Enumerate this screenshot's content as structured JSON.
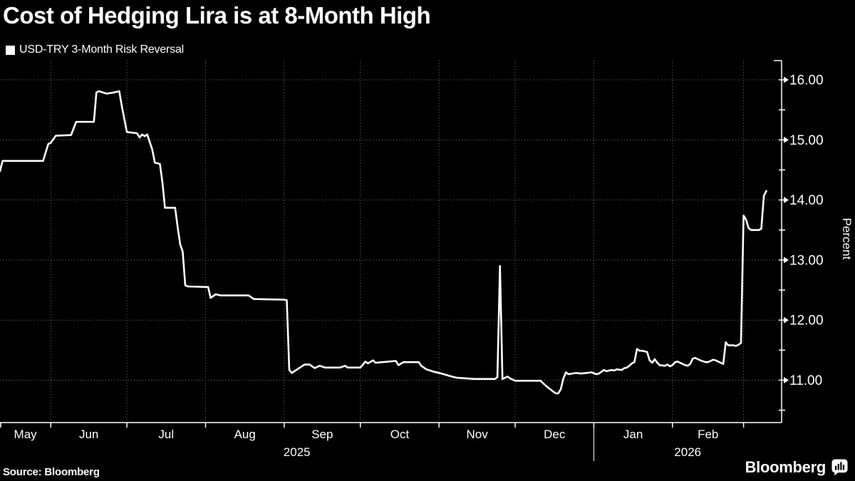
{
  "header": {
    "title": "Cost of Hedging Lira is at 8-Month High"
  },
  "legend": {
    "label": "USD-TRY 3-Month Risk Reversal"
  },
  "footer": {
    "source": "Source: Bloomberg",
    "brand": "Bloomberg"
  },
  "colors": {
    "background": "#000000",
    "text": "#ffffff",
    "grid": "#6f6f6f",
    "axis": "#ffffff",
    "line": "#ffffff"
  },
  "chart_data": {
    "type": "line",
    "title": "Cost of Hedging Lira is at 8-Month High",
    "ylabel": "Percent",
    "ylim": [
      10.3,
      16.32
    ],
    "grid": true,
    "legend_position": "top-left",
    "y_major_ticks": [
      {
        "value": 16,
        "label": "16.00"
      },
      {
        "value": 15,
        "label": "15.00"
      },
      {
        "value": 14,
        "label": "14.00"
      },
      {
        "value": 13,
        "label": "13.00"
      },
      {
        "value": 12,
        "label": "12.00"
      },
      {
        "value": 11,
        "label": "11.00"
      }
    ],
    "y_minor_ticks": [
      15.5,
      14.5,
      13.5,
      12.5,
      11.5,
      10.5
    ],
    "x_axis": {
      "start_date": "2025-05-12",
      "end_date": "2026-03-16",
      "month_labels": [
        "May",
        "Jun",
        "Jul",
        "Aug",
        "Sep",
        "Oct",
        "Nov",
        "Dec",
        "Jan",
        "Feb"
      ],
      "year_labels": [
        "2025",
        "2026"
      ],
      "year_separator_date": "2026-01-01"
    },
    "series": [
      {
        "name": "USD-TRY 3-Month Risk Reversal",
        "points": [
          [
            "2025-05-12",
            14.48
          ],
          [
            "2025-05-13",
            14.65
          ],
          [
            "2025-05-29",
            14.65
          ],
          [
            "2025-05-31",
            14.93
          ],
          [
            "2025-06-01",
            14.95
          ],
          [
            "2025-06-03",
            15.07
          ],
          [
            "2025-06-09",
            15.08
          ],
          [
            "2025-06-11",
            15.3
          ],
          [
            "2025-06-18",
            15.3
          ],
          [
            "2025-06-19",
            15.79
          ],
          [
            "2025-06-20",
            15.81
          ],
          [
            "2025-06-23",
            15.77
          ],
          [
            "2025-06-26",
            15.79
          ],
          [
            "2025-06-28",
            15.81
          ],
          [
            "2025-06-29",
            15.56
          ],
          [
            "2025-07-01",
            15.13
          ],
          [
            "2025-07-05",
            15.11
          ],
          [
            "2025-07-06",
            15.04
          ],
          [
            "2025-07-07",
            15.09
          ],
          [
            "2025-07-08",
            15.06
          ],
          [
            "2025-07-09",
            15.09
          ],
          [
            "2025-07-11",
            14.84
          ],
          [
            "2025-07-12",
            14.62
          ],
          [
            "2025-07-14",
            14.6
          ],
          [
            "2025-07-15",
            14.3
          ],
          [
            "2025-07-16",
            13.87
          ],
          [
            "2025-07-20",
            13.87
          ],
          [
            "2025-07-21",
            13.55
          ],
          [
            "2025-07-22",
            13.26
          ],
          [
            "2025-07-23",
            13.14
          ],
          [
            "2025-07-24",
            12.58
          ],
          [
            "2025-07-25",
            12.56
          ],
          [
            "2025-08-02",
            12.55
          ],
          [
            "2025-08-03",
            12.37
          ],
          [
            "2025-08-05",
            12.43
          ],
          [
            "2025-08-07",
            12.41
          ],
          [
            "2025-08-18",
            12.41
          ],
          [
            "2025-08-20",
            12.35
          ],
          [
            "2025-09-01",
            12.34
          ],
          [
            "2025-09-02",
            12.33
          ],
          [
            "2025-09-03",
            11.17
          ],
          [
            "2025-09-04",
            11.12
          ],
          [
            "2025-09-05",
            11.15
          ],
          [
            "2025-09-09",
            11.26
          ],
          [
            "2025-09-11",
            11.26
          ],
          [
            "2025-09-13",
            11.2
          ],
          [
            "2025-09-15",
            11.24
          ],
          [
            "2025-09-17",
            11.21
          ],
          [
            "2025-09-23",
            11.21
          ],
          [
            "2025-09-25",
            11.24
          ],
          [
            "2025-09-26",
            11.21
          ],
          [
            "2025-10-01",
            11.21
          ],
          [
            "2025-10-03",
            11.31
          ],
          [
            "2025-10-04",
            11.28
          ],
          [
            "2025-10-06",
            11.33
          ],
          [
            "2025-10-07",
            11.29
          ],
          [
            "2025-10-15",
            11.32
          ],
          [
            "2025-10-16",
            11.25
          ],
          [
            "2025-10-18",
            11.3
          ],
          [
            "2025-10-24",
            11.3
          ],
          [
            "2025-10-25",
            11.24
          ],
          [
            "2025-10-27",
            11.18
          ],
          [
            "2025-10-30",
            11.14
          ],
          [
            "2025-11-02",
            11.11
          ],
          [
            "2025-11-06",
            11.06
          ],
          [
            "2025-11-08",
            11.04
          ],
          [
            "2025-11-15",
            11.02
          ],
          [
            "2025-11-23",
            11.02
          ],
          [
            "2025-11-24",
            11.05
          ],
          [
            "2025-11-25",
            12.9
          ],
          [
            "2025-11-26",
            11.02
          ],
          [
            "2025-11-28",
            11.06
          ],
          [
            "2025-11-29",
            11.03
          ],
          [
            "2025-12-01",
            10.99
          ],
          [
            "2025-12-11",
            10.99
          ],
          [
            "2025-12-13",
            10.91
          ],
          [
            "2025-12-16",
            10.81
          ],
          [
            "2025-12-17",
            10.78
          ],
          [
            "2025-12-18",
            10.78
          ],
          [
            "2025-12-19",
            10.85
          ],
          [
            "2025-12-20",
            11.03
          ],
          [
            "2025-12-21",
            11.13
          ],
          [
            "2025-12-22",
            11.1
          ],
          [
            "2025-12-25",
            11.12
          ],
          [
            "2025-12-27",
            11.11
          ],
          [
            "2025-12-29",
            11.12
          ],
          [
            "2025-12-31",
            11.13
          ],
          [
            "2026-01-02",
            11.1
          ],
          [
            "2026-01-03",
            11.11
          ],
          [
            "2026-01-04",
            11.14
          ],
          [
            "2026-01-05",
            11.17
          ],
          [
            "2026-01-06",
            11.15
          ],
          [
            "2026-01-08",
            11.17
          ],
          [
            "2026-01-09",
            11.16
          ],
          [
            "2026-01-10",
            11.18
          ],
          [
            "2026-01-12",
            11.17
          ],
          [
            "2026-01-13",
            11.2
          ],
          [
            "2026-01-14",
            11.21
          ],
          [
            "2026-01-15",
            11.24
          ],
          [
            "2026-01-16",
            11.28
          ],
          [
            "2026-01-17",
            11.3
          ],
          [
            "2026-01-18",
            11.52
          ],
          [
            "2026-01-19",
            11.49
          ],
          [
            "2026-01-20",
            11.49
          ],
          [
            "2026-01-22",
            11.47
          ],
          [
            "2026-01-23",
            11.33
          ],
          [
            "2026-01-24",
            11.29
          ],
          [
            "2026-01-25",
            11.35
          ],
          [
            "2026-01-26",
            11.29
          ],
          [
            "2026-01-27",
            11.25
          ],
          [
            "2026-01-29",
            11.24
          ],
          [
            "2026-01-30",
            11.26
          ],
          [
            "2026-01-31",
            11.23
          ],
          [
            "2026-02-01",
            11.25
          ],
          [
            "2026-02-02",
            11.3
          ],
          [
            "2026-02-03",
            11.31
          ],
          [
            "2026-02-04",
            11.29
          ],
          [
            "2026-02-06",
            11.25
          ],
          [
            "2026-02-07",
            11.24
          ],
          [
            "2026-02-08",
            11.27
          ],
          [
            "2026-02-09",
            11.36
          ],
          [
            "2026-02-10",
            11.37
          ],
          [
            "2026-02-11",
            11.35
          ],
          [
            "2026-02-12",
            11.33
          ],
          [
            "2026-02-14",
            11.3
          ],
          [
            "2026-02-15",
            11.3
          ],
          [
            "2026-02-16",
            11.32
          ],
          [
            "2026-02-17",
            11.34
          ],
          [
            "2026-02-18",
            11.33
          ],
          [
            "2026-02-20",
            11.29
          ],
          [
            "2026-02-21",
            11.27
          ],
          [
            "2026-02-22",
            11.63
          ],
          [
            "2026-02-23",
            11.58
          ],
          [
            "2026-02-25",
            11.58
          ],
          [
            "2026-02-26",
            11.57
          ],
          [
            "2026-02-27",
            11.59
          ],
          [
            "2026-02-28",
            11.62
          ],
          [
            "2026-03-01",
            13.74
          ],
          [
            "2026-03-02",
            13.67
          ],
          [
            "2026-03-03",
            13.53
          ],
          [
            "2026-03-04",
            13.5
          ],
          [
            "2026-03-07",
            13.5
          ],
          [
            "2026-03-08",
            13.52
          ],
          [
            "2026-03-09",
            14.07
          ],
          [
            "2026-03-10",
            14.15
          ]
        ]
      }
    ]
  }
}
